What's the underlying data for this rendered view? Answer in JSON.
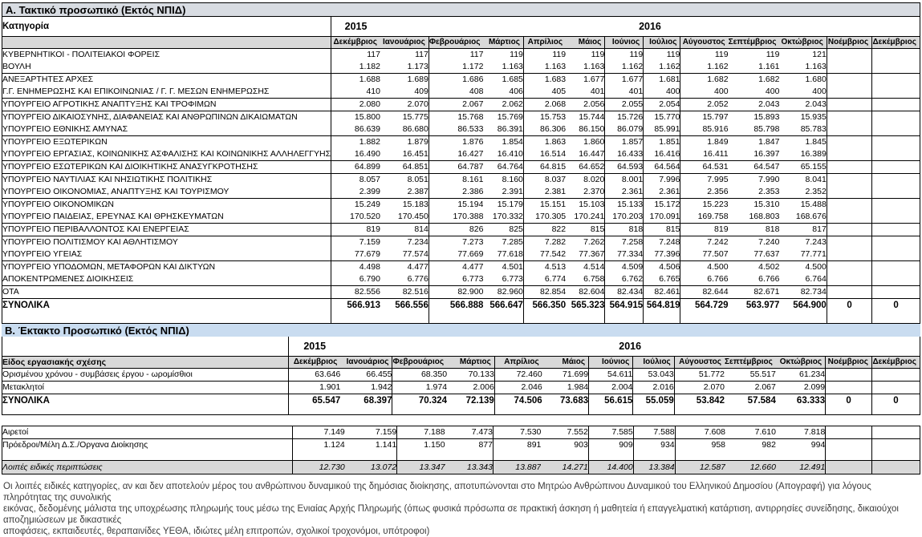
{
  "section_a": {
    "title": "Α. Τακτικό προσωπικό (Εκτός ΝΠΙΔ)",
    "row_header_label": "Κατηγορία",
    "year_left": "2015",
    "year_right": "2016",
    "months": [
      "Δεκέμβριος",
      "Ιανουάριος",
      "Φεβρουάριος",
      "Μάρτιος",
      "Απρίλιος",
      "Μάιος",
      "Ιούνιος",
      "Ιούλιος",
      "Αύγουστος",
      "Σεπτέμβριος",
      "Οκτώβριος",
      "Νοέμβριος",
      "Δεκέμβριος"
    ],
    "rows": [
      {
        "label": "ΚΥΒΕΡΝΗΤΙΚΟΙ - ΠΟΛΙΤΕΙΑΚΟΙ ΦΟΡΕΙΣ",
        "values": [
          "117",
          "117",
          "117",
          "119",
          "119",
          "119",
          "119",
          "119",
          "119",
          "119",
          "121",
          "",
          ""
        ]
      },
      {
        "label": "ΒΟΥΛΗ",
        "values": [
          "1.182",
          "1.173",
          "1.172",
          "1.163",
          "1.163",
          "1.163",
          "1.162",
          "1.162",
          "1.162",
          "1.161",
          "1.163",
          "",
          ""
        ]
      },
      {
        "label": "ΑΝΕΞΑΡΤΗΤΕΣ ΑΡΧΕΣ",
        "values": [
          "1.688",
          "1.689",
          "1.686",
          "1.685",
          "1.683",
          "1.677",
          "1.677",
          "1.681",
          "1.682",
          "1.682",
          "1.680",
          "",
          ""
        ]
      },
      {
        "label": "Γ.Γ. ΕΝΗΜΕΡΩΣΗΣ ΚΑΙ ΕΠΙΚΟΙΝΩΝΙΑΣ / Γ. Γ. ΜΕΣΩΝ ΕΝΗΜΕΡΩΣΗΣ",
        "values": [
          "410",
          "409",
          "408",
          "406",
          "405",
          "401",
          "401",
          "400",
          "400",
          "400",
          "400",
          "",
          ""
        ]
      },
      {
        "label": "ΥΠΟΥΡΓΕΙΟ ΑΓΡΟΤΙΚΗΣ ΑΝΑΠΤΥΞΗΣ ΚΑΙ ΤΡΟΦΙΜΩΝ",
        "values": [
          "2.080",
          "2.070",
          "2.067",
          "2.062",
          "2.068",
          "2.056",
          "2.055",
          "2.054",
          "2.052",
          "2.043",
          "2.043",
          "",
          ""
        ]
      },
      {
        "label": "ΥΠΟΥΡΓΕΙΟ ΔΙΚΑΙΟΣΥΝΗΣ, ΔΙΑΦΑΝΕΙΑΣ ΚΑΙ ΑΝΘΡΩΠΙΝΩΝ ΔΙΚΑΙΩΜΑΤΩΝ",
        "values": [
          "15.800",
          "15.775",
          "15.768",
          "15.769",
          "15.753",
          "15.744",
          "15.726",
          "15.770",
          "15.797",
          "15.893",
          "15.935",
          "",
          ""
        ]
      },
      {
        "label": "ΥΠΟΥΡΓΕΙΟ ΕΘΝΙΚΗΣ ΑΜΥΝΑΣ",
        "values": [
          "86.639",
          "86.680",
          "86.533",
          "86.391",
          "86.306",
          "86.150",
          "86.079",
          "85.991",
          "85.916",
          "85.798",
          "85.783",
          "",
          ""
        ]
      },
      {
        "label": "ΥΠΟΥΡΓΕΙΟ ΕΞΩΤΕΡΙΚΩΝ",
        "values": [
          "1.882",
          "1.879",
          "1.876",
          "1.854",
          "1.863",
          "1.860",
          "1.857",
          "1.851",
          "1.849",
          "1.847",
          "1.845",
          "",
          ""
        ]
      },
      {
        "label": "ΥΠΟΥΡΓΕΙΟ ΕΡΓΑΣΙΑΣ, ΚΟΙΝΩΝΙΚΗΣ ΑΣΦΑΛΙΣΗΣ ΚΑΙ ΚΟΙΝΩΝΙΚΗΣ ΑΛΛΗΛΕΓΓΥΗΣ",
        "values": [
          "16.490",
          "16.451",
          "16.427",
          "16.410",
          "16.514",
          "16.447",
          "16.433",
          "16.416",
          "16.411",
          "16.397",
          "16.389",
          "",
          ""
        ]
      },
      {
        "label": "ΥΠΟΥΡΓΕΙΟ ΕΣΩΤΕΡΙΚΩΝ ΚΑΙ ΔΙΟΙΚΗΤΙΚΗΣ ΑΝΑΣΥΓΚΡΟΤΗΣΗΣ",
        "values": [
          "64.899",
          "64.851",
          "64.787",
          "64.764",
          "64.815",
          "64.652",
          "64.593",
          "64.564",
          "64.531",
          "64.547",
          "65.155",
          "",
          ""
        ]
      },
      {
        "label": "ΥΠΟΥΡΓΕΙΟ ΝΑΥΤΙΛΙΑΣ ΚΑΙ ΝΗΣΙΩΤΙΚΗΣ ΠΟΛΙΤΙΚΗΣ",
        "values": [
          "8.057",
          "8.051",
          "8.161",
          "8.160",
          "8.037",
          "8.020",
          "8.001",
          "7.996",
          "7.995",
          "7.990",
          "8.041",
          "",
          ""
        ]
      },
      {
        "label": "ΥΠΟΥΡΓΕΙΟ ΟΙΚΟΝΟΜΙΑΣ, ΑΝΑΠΤΥΞΗΣ ΚΑΙ ΤΟΥΡΙΣΜΟΥ",
        "values": [
          "2.399",
          "2.387",
          "2.386",
          "2.391",
          "2.381",
          "2.370",
          "2.361",
          "2.361",
          "2.356",
          "2.353",
          "2.352",
          "",
          ""
        ]
      },
      {
        "label": "ΥΠΟΥΡΓΕΙΟ ΟΙΚΟΝΟΜΙΚΩΝ",
        "values": [
          "15.249",
          "15.183",
          "15.194",
          "15.179",
          "15.151",
          "15.103",
          "15.133",
          "15.172",
          "15.223",
          "15.310",
          "15.488",
          "",
          ""
        ]
      },
      {
        "label": "ΥΠΟΥΡΓΕΙΟ ΠΑΙΔΕΙΑΣ, ΕΡΕΥΝΑΣ ΚΑΙ ΘΡΗΣΚΕΥΜΑΤΩΝ",
        "values": [
          "170.520",
          "170.450",
          "170.388",
          "170.332",
          "170.305",
          "170.241",
          "170.203",
          "170.091",
          "169.758",
          "168.803",
          "168.676",
          "",
          ""
        ]
      },
      {
        "label": "ΥΠΟΥΡΓΕΙΟ ΠΕΡΙΒΑΛΛΟΝΤΟΣ ΚΑΙ ΕΝΕΡΓΕΙΑΣ",
        "values": [
          "819",
          "814",
          "826",
          "825",
          "822",
          "815",
          "818",
          "815",
          "819",
          "818",
          "817",
          "",
          ""
        ]
      },
      {
        "label": "ΥΠΟΥΡΓΕΙΟ ΠΟΛΙΤΙΣΜΟΥ ΚΑΙ ΑΘΛΗΤΙΣΜΟΥ",
        "values": [
          "7.159",
          "7.234",
          "7.273",
          "7.285",
          "7.282",
          "7.262",
          "7.258",
          "7.248",
          "7.242",
          "7.240",
          "7.243",
          "",
          ""
        ]
      },
      {
        "label": "ΥΠΟΥΡΓΕΙΟ ΥΓΕΙΑΣ",
        "values": [
          "77.679",
          "77.574",
          "77.669",
          "77.618",
          "77.542",
          "77.367",
          "77.334",
          "77.396",
          "77.507",
          "77.637",
          "77.771",
          "",
          ""
        ]
      },
      {
        "label": "ΥΠΟΥΡΓΕΙΟ ΥΠΟΔΟΜΩΝ, ΜΕΤΑΦΟΡΩΝ ΚΑΙ ΔΙΚΤΥΩΝ",
        "values": [
          "4.498",
          "4.477",
          "4.477",
          "4.501",
          "4.513",
          "4.514",
          "4.509",
          "4.506",
          "4.500",
          "4.502",
          "4.500",
          "",
          ""
        ]
      },
      {
        "label": "ΑΠΟΚΕΝΤΡΩΜΕΝΕΣ ΔΙΟΙΚΗΣΕΙΣ",
        "values": [
          "6.790",
          "6.776",
          "6.773",
          "6.773",
          "6.774",
          "6.758",
          "6.762",
          "6.765",
          "6.766",
          "6.766",
          "6.764",
          "",
          ""
        ]
      },
      {
        "label": "ΟΤΑ",
        "values": [
          "82.556",
          "82.516",
          "82.900",
          "82.960",
          "82.854",
          "82.604",
          "82.434",
          "82.461",
          "82.644",
          "82.671",
          "82.734",
          "",
          ""
        ]
      }
    ],
    "totals": {
      "label": "ΣΥΝΟΛΙΚΑ",
      "values": [
        "566.913",
        "566.556",
        "566.888",
        "566.647",
        "566.350",
        "565.323",
        "564.915",
        "564.819",
        "564.729",
        "563.977",
        "564.900",
        "0",
        "0"
      ]
    }
  },
  "section_b": {
    "title": "Β. Έκτακτο Προσωπικό (Εκτός ΝΠΙΔ)",
    "row_header_label": "Είδος εργασιακής σχέσης",
    "year_left": "2015",
    "year_right": "2016",
    "months": [
      "Δεκέμβριος",
      "Ιανουάριος",
      "Φεβρουάριος",
      "Μάρτιος",
      "Απρίλιος",
      "Μάιος",
      "Ιούνιος",
      "Ιούλιος",
      "Αύγουστος",
      "Σεπτέμβριος",
      "Οκτώβριος",
      "Νοέμβριος",
      "Δεκέμβριος"
    ],
    "rows": [
      {
        "label": "Ορισμένου χρόνου - συμβάσεις έργου - ωρομίσθιοι",
        "values": [
          "63.646",
          "66.455",
          "68.350",
          "70.133",
          "72.460",
          "71.699",
          "54.611",
          "53.043",
          "51.772",
          "55.517",
          "61.234",
          "",
          ""
        ]
      },
      {
        "label": "Μετακλητοί",
        "values": [
          "1.901",
          "1.942",
          "1.974",
          "2.006",
          "2.046",
          "1.984",
          "2.004",
          "2.016",
          "2.070",
          "2.067",
          "2.099",
          "",
          ""
        ]
      }
    ],
    "totals": {
      "label": "ΣΥΝΟΛΙΚΑ",
      "values": [
        "65.547",
        "68.397",
        "70.324",
        "72.139",
        "74.506",
        "73.683",
        "56.615",
        "55.059",
        "53.842",
        "57.584",
        "63.333",
        "0",
        "0"
      ]
    },
    "extra_rows": [
      {
        "label": "Αιρετοί",
        "values": [
          "7.149",
          "7.159",
          "7.188",
          "7.473",
          "7.530",
          "7.552",
          "7.585",
          "7.588",
          "7.608",
          "7.610",
          "7.818",
          "",
          ""
        ]
      },
      {
        "label": "Πρόεδροι/Μέλη Δ.Σ./Οργανα Διοίκησης",
        "values": [
          "1.124",
          "1.141",
          "1.150",
          "877",
          "891",
          "903",
          "909",
          "934",
          "958",
          "982",
          "994",
          "",
          ""
        ]
      }
    ],
    "special_row": {
      "label": "Λοιπές ειδικές περιπτώσεις",
      "values": [
        "12.730",
        "13.072",
        "13.347",
        "13.343",
        "13.887",
        "14.271",
        "14.400",
        "13.384",
        "12.587",
        "12.660",
        "12.491",
        "",
        ""
      ]
    }
  },
  "footnote_lines": [
    "Οι λοιπές ειδικές κατηγορίες, αν και δεν αποτελούν μέρος του ανθρώπινου δυναμικού της δημόσιας διοίκησης, αποτυπώνονται στο Μητρώο Ανθρώπινου Δυναμικού του Ελληνικού Δημοσίου (Απογραφή) για λόγους πληρότητας της συνολικής",
    "εικόνας, δεδομένης μάλιστα της υποχρέωσης πληρωμής τους μέσω της Ενιαίας Αρχής Πληρωμής (όπως φυσικά πρόσωπα σε πρακτική άσκηση ή μαθητεία ή επαγγελματική κατάρτιση, αντιρρησίες συνείδησης, δικαιούχοι αποζημιώσεων με δικαστικές",
    "αποφάσεις, εκπαιδευτές, θεραπαινίδες ΥΕΘΑ, ιδιώτες μέλη επιτροπών, σχολικοί τροχονόμοι, υπότροφοι)"
  ],
  "colors": {
    "section_a_bar": "#d8dce2",
    "section_b_bar": "#c9dcf0",
    "header_gray": "#d9d9d9",
    "border": "#000000"
  }
}
